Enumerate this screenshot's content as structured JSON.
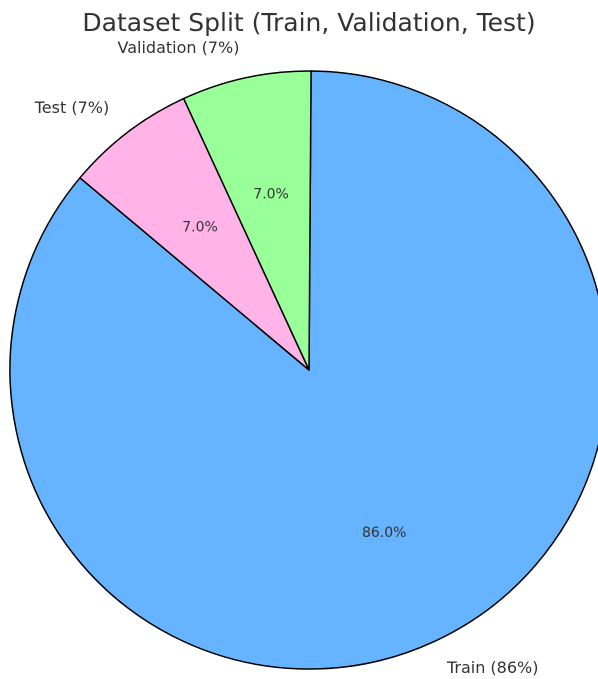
{
  "chart_data": {
    "type": "pie",
    "title": "Dataset Split (Train, Validation, Test)",
    "categories": [
      "Train (86%)",
      "Validation (7%)",
      "Test (7%)"
    ],
    "values": [
      86,
      7,
      7
    ],
    "value_labels": [
      "86.0%",
      "7.0%",
      "7.0%"
    ],
    "colors": [
      "#66b3ff",
      "#99ff99",
      "#ffb3e6"
    ],
    "startangle": 140
  }
}
